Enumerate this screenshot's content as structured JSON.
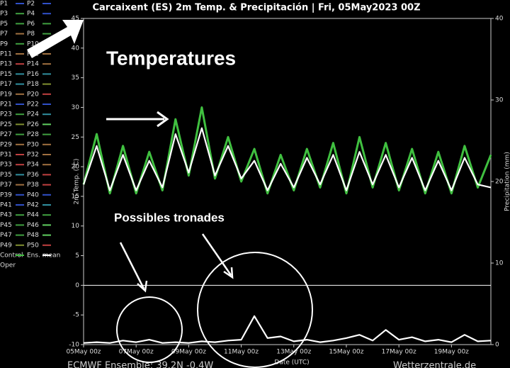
{
  "chart_data": {
    "type": "line",
    "title": "Carcaixent  (ES)  2m Temp. & Precipitación | Fri, 05May2023 00Z",
    "y_label": "2m Temp. (°C)",
    "y2_label": "Precipitation (mm)",
    "x_label": "Date (UTC)",
    "annotations": [
      "Temperatures",
      "Possibles  tronades"
    ],
    "footer_left": "ECMWF Ensemble: 39.2N -0.4W",
    "footer_right": "Wetterzentrale.de",
    "xlim": [
      "05May 00z",
      "20May 12z"
    ],
    "xticks": [
      "05May 00z",
      "07May 00z",
      "09May 00z",
      "11May 00z",
      "13May 00z",
      "15May 00z",
      "17May 00z",
      "19May 00z"
    ],
    "ylim": [
      -10,
      45
    ],
    "yticks": [
      -10,
      -5,
      0,
      5,
      10,
      15,
      20,
      25,
      30,
      35,
      40,
      45
    ],
    "y2lim": [
      0,
      40
    ],
    "y2ticks": [
      0,
      10,
      20,
      30,
      40
    ],
    "zero_line": true,
    "x": [
      "05May 00z",
      "05May 12z",
      "06May 00z",
      "06May 12z",
      "07May 00z",
      "07May 12z",
      "08May 00z",
      "08May 12z",
      "09May 00z",
      "09May 12z",
      "10May 00z",
      "10May 12z",
      "11May 00z",
      "11May 12z",
      "12May 00z",
      "12May 12z",
      "13May 00z",
      "13May 12z",
      "14May 00z",
      "14May 12z",
      "15May 00z",
      "15May 12z",
      "16May 00z",
      "16May 12z",
      "17May 00z",
      "17May 12z",
      "18May 00z",
      "18May 12z",
      "19May 00z",
      "19May 12z",
      "20May 00z",
      "20May 12z"
    ],
    "series": [
      {
        "name": "Control",
        "color": "#40c040",
        "values": [
          17,
          25.5,
          15.5,
          23.5,
          15.5,
          22.5,
          16,
          28,
          18.5,
          30,
          18,
          25,
          17.5,
          23,
          15.5,
          22,
          16,
          23,
          16.5,
          24,
          15.5,
          25,
          16.5,
          24,
          16,
          23,
          15.5,
          22.5,
          15.5,
          23.5,
          16.5,
          22
        ]
      },
      {
        "name": "Ens. mean",
        "color": "#ffffff",
        "values": [
          17,
          23.5,
          16,
          22,
          16,
          21,
          16.5,
          25.5,
          19,
          26.5,
          18.5,
          23.5,
          18,
          21,
          16,
          20.5,
          16.5,
          21.5,
          17,
          22,
          16,
          22.5,
          17,
          22,
          16.5,
          21.5,
          16,
          21,
          16,
          21.5,
          17,
          16.5
        ]
      },
      {
        "name": "Ens. mean",
        "color": "#ffffff",
        "axis": "y2",
        "values": [
          0.2,
          0.3,
          0.2,
          0.5,
          0.3,
          0.6,
          0.2,
          0.3,
          0.2,
          0.4,
          0.3,
          0.5,
          0.6,
          3.5,
          0.8,
          1,
          0.4,
          0.6,
          0.3,
          0.5,
          0.8,
          1.2,
          0.5,
          1.8,
          0.6,
          0.9,
          0.4,
          0.6,
          0.3,
          1.2,
          0.4,
          0.5
        ]
      }
    ],
    "legend": [
      {
        "name": "P1",
        "color": "#3050c8"
      },
      {
        "name": "P2",
        "color": "#3050c8"
      },
      {
        "name": "P3",
        "color": "#40a040"
      },
      {
        "name": "P4",
        "color": "#3050c8"
      },
      {
        "name": "P5",
        "color": "#40a040"
      },
      {
        "name": "P6",
        "color": "#40a040"
      },
      {
        "name": "P7",
        "color": "#a07040"
      },
      {
        "name": "P8",
        "color": "#40a040"
      },
      {
        "name": "P9",
        "color": "#40a040"
      },
      {
        "name": "P10",
        "color": "#60d060"
      },
      {
        "name": "P11",
        "color": "#a07040"
      },
      {
        "name": "P12",
        "color": "#a07040"
      },
      {
        "name": "P13",
        "color": "#c04040"
      },
      {
        "name": "P14",
        "color": "#a07040"
      },
      {
        "name": "P15",
        "color": "#3090a0"
      },
      {
        "name": "P16",
        "color": "#3090a0"
      },
      {
        "name": "P17",
        "color": "#3090a0"
      },
      {
        "name": "P18",
        "color": "#809030"
      },
      {
        "name": "P19",
        "color": "#a07040"
      },
      {
        "name": "P20",
        "color": "#c04040"
      },
      {
        "name": "P21",
        "color": "#3050c8"
      },
      {
        "name": "P22",
        "color": "#3050c8"
      },
      {
        "name": "P23",
        "color": "#40a040"
      },
      {
        "name": "P24",
        "color": "#3090a0"
      },
      {
        "name": "P25",
        "color": "#809030"
      },
      {
        "name": "P26",
        "color": "#60d060"
      },
      {
        "name": "P27",
        "color": "#40a040"
      },
      {
        "name": "P28",
        "color": "#40a040"
      },
      {
        "name": "P29",
        "color": "#a07040"
      },
      {
        "name": "P30",
        "color": "#a07040"
      },
      {
        "name": "P31",
        "color": "#c04040"
      },
      {
        "name": "P32",
        "color": "#a07040"
      },
      {
        "name": "P33",
        "color": "#c04040"
      },
      {
        "name": "P34",
        "color": "#a07040"
      },
      {
        "name": "P35",
        "color": "#3090a0"
      },
      {
        "name": "P36",
        "color": "#c04040"
      },
      {
        "name": "P37",
        "color": "#a07040"
      },
      {
        "name": "P38",
        "color": "#c04040"
      },
      {
        "name": "P39",
        "color": "#3050c8"
      },
      {
        "name": "P40",
        "color": "#3050c8"
      },
      {
        "name": "P41",
        "color": "#3050c8"
      },
      {
        "name": "P42",
        "color": "#3090a0"
      },
      {
        "name": "P43",
        "color": "#40a040"
      },
      {
        "name": "P44",
        "color": "#40a040"
      },
      {
        "name": "P45",
        "color": "#40a040"
      },
      {
        "name": "P46",
        "color": "#60d060"
      },
      {
        "name": "P47",
        "color": "#40a040"
      },
      {
        "name": "P48",
        "color": "#60d060"
      },
      {
        "name": "P49",
        "color": "#809030"
      },
      {
        "name": "P50",
        "color": "#c04040"
      },
      {
        "name": "Control",
        "color": "#40c040"
      },
      {
        "name": "Ens. mean",
        "color": "#ffffff"
      },
      {
        "name": "Oper",
        "color": "#000000"
      }
    ]
  }
}
